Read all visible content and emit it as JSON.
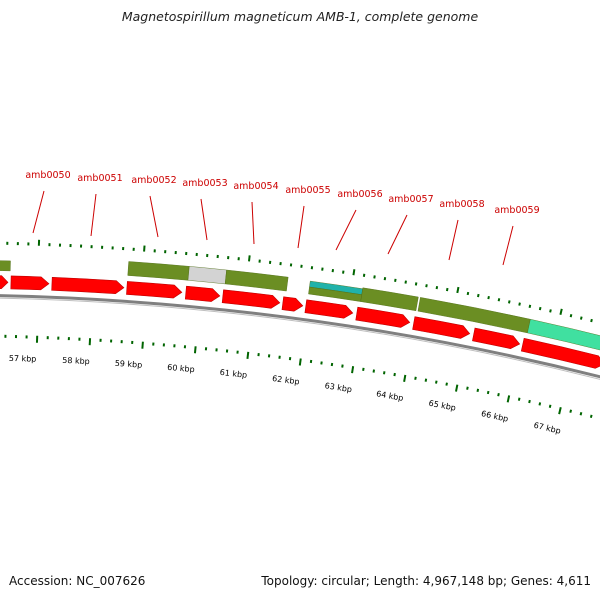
{
  "title": "Magnetospirillum magneticum AMB-1, complete genome",
  "footer": {
    "accession": "Accession: NC_007626",
    "summary": "Topology: circular; Length: 4,967,148 bp; Genes: 4,611"
  },
  "colors": {
    "cds": "#ff0000",
    "olive": "#6b8e23",
    "gray": "#d3d3d3",
    "teal": "#20b2aa",
    "aquamarine": "#40e0a0",
    "backbone": "#808080",
    "tick": "#006400",
    "label": "#cc0000"
  },
  "ruler_labels_kbp": [
    57,
    58,
    59,
    60,
    61,
    62,
    63,
    64,
    65,
    66,
    67
  ],
  "ruler_unit": "kbp",
  "gene_labels": [
    "amb0050",
    "amb0051",
    "amb0052",
    "amb0053",
    "amb0054",
    "amb0055",
    "amb0056",
    "amb0057",
    "amb0058",
    "amb0059"
  ]
}
